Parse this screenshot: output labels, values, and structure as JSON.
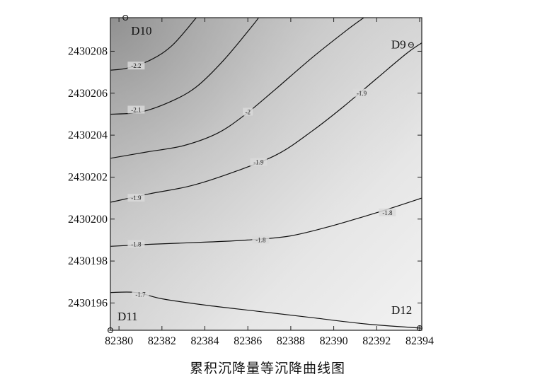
{
  "chart_data": {
    "type": "contour",
    "title": "",
    "caption": "累积沉降量等沉降曲线图",
    "xlabel": "",
    "ylabel": "",
    "xlim": [
      82379.6,
      82394.1
    ],
    "ylim": [
      2430194.7,
      2430209.6
    ],
    "x_ticks": [
      "82380",
      "82382",
      "82384",
      "82386",
      "82388",
      "82390",
      "82392",
      "82394"
    ],
    "y_ticks": [
      "2430196",
      "2430198",
      "2430200",
      "2430202",
      "2430204",
      "2430206",
      "2430208"
    ],
    "grid": false,
    "stations": [
      {
        "name": "D10",
        "x": 82380.3,
        "y": 2430209.6
      },
      {
        "name": "D9",
        "x": 82393.6,
        "y": 2430208.3
      },
      {
        "name": "D11",
        "x": 82379.6,
        "y": 2430194.7
      },
      {
        "name": "D12",
        "x": 82394.0,
        "y": 2430194.8
      }
    ],
    "contours": [
      {
        "level": -2.2,
        "label": "-2.2",
        "points": [
          [
            82379.6,
            2430207.1
          ],
          [
            82380.4,
            2430207.2
          ],
          [
            82381.5,
            2430207.6
          ],
          [
            82382.5,
            2430208.3
          ],
          [
            82383.6,
            2430209.6
          ]
        ],
        "label_at": [
          82380.8,
          2430207.3
        ]
      },
      {
        "level": -2.1,
        "label": "-2.1",
        "points": [
          [
            82379.6,
            2430205.0
          ],
          [
            82381.0,
            2430205.1
          ],
          [
            82382.4,
            2430205.6
          ],
          [
            82383.6,
            2430206.3
          ],
          [
            82384.9,
            2430207.6
          ],
          [
            82386.2,
            2430209.2
          ],
          [
            82386.5,
            2430209.6
          ]
        ],
        "label_at": [
          82380.8,
          2430205.2
        ]
      },
      {
        "level": -2.0,
        "label": "-2",
        "points": [
          [
            82379.6,
            2430202.9
          ],
          [
            82381.3,
            2430203.2
          ],
          [
            82383.0,
            2430203.5
          ],
          [
            82384.6,
            2430204.1
          ],
          [
            82385.9,
            2430205.0
          ],
          [
            82387.3,
            2430206.2
          ],
          [
            82389.0,
            2430207.7
          ],
          [
            82390.6,
            2430209.0
          ],
          [
            82391.4,
            2430209.6
          ]
        ],
        "label_at": [
          82386.0,
          2430205.1
        ]
      },
      {
        "level": -1.9,
        "label": "-1.9",
        "points": [
          [
            82379.6,
            2430200.8
          ],
          [
            82381.4,
            2430201.2
          ],
          [
            82383.4,
            2430201.6
          ],
          [
            82385.5,
            2430202.3
          ],
          [
            82387.4,
            2430203.1
          ],
          [
            82389.0,
            2430204.2
          ],
          [
            82390.5,
            2430205.4
          ],
          [
            82392.0,
            2430206.7
          ],
          [
            82393.4,
            2430207.9
          ],
          [
            82394.1,
            2430208.4
          ]
        ],
        "label_at": [
          82380.8,
          2430201.0
        ],
        "label_at_2": [
          82386.5,
          2430202.7
        ],
        "label_at_3": [
          82391.3,
          2430206.0
        ]
      },
      {
        "level": -1.8,
        "label": "-1.8",
        "points": [
          [
            82379.6,
            2430198.7
          ],
          [
            82381.5,
            2430198.8
          ],
          [
            82384.0,
            2430198.9
          ],
          [
            82386.0,
            2430199.0
          ],
          [
            82388.0,
            2430199.2
          ],
          [
            82390.0,
            2430199.7
          ],
          [
            82392.3,
            2430200.4
          ],
          [
            82394.1,
            2430201.0
          ]
        ],
        "label_at": [
          82380.8,
          2430198.8
        ],
        "label_at_2": [
          82386.6,
          2430199.0
        ],
        "label_at_3": [
          82392.5,
          2430200.3
        ]
      },
      {
        "level": -1.7,
        "label": "-1.7",
        "points": [
          [
            82379.6,
            2430196.5
          ],
          [
            82380.8,
            2430196.5
          ],
          [
            82382.0,
            2430196.2
          ],
          [
            82384.0,
            2430195.9
          ],
          [
            82386.5,
            2430195.6
          ],
          [
            82389.0,
            2430195.3
          ],
          [
            82391.5,
            2430195.0
          ],
          [
            82394.1,
            2430194.8
          ]
        ],
        "label_at": [
          82381.0,
          2430196.4
        ]
      }
    ],
    "shading": {
      "darkest": "#9a9a9a",
      "lightest": "#f2f2f2"
    }
  }
}
